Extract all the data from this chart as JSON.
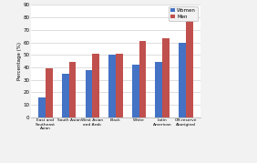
{
  "categories": [
    "East and\nSoutheast\nAsian",
    "South Asian",
    "West Asian\nand Arab",
    "Black",
    "White",
    "Latin\nAmerican",
    "Off-reserve\nAboriginal"
  ],
  "women": [
    16,
    35,
    38,
    50,
    42,
    44,
    60
  ],
  "men": [
    39,
    44,
    51,
    51,
    61,
    63,
    77
  ],
  "women_color": "#4472c4",
  "men_color": "#c0504d",
  "ylabel": "Percentage (%)",
  "ylim": [
    0,
    90
  ],
  "yticks": [
    0,
    10,
    20,
    30,
    40,
    50,
    60,
    70,
    80,
    90
  ],
  "legend_labels": [
    "Women",
    "Men"
  ],
  "bar_width": 0.3,
  "background_color": "#f2f2f2",
  "plot_bg_color": "#ffffff"
}
